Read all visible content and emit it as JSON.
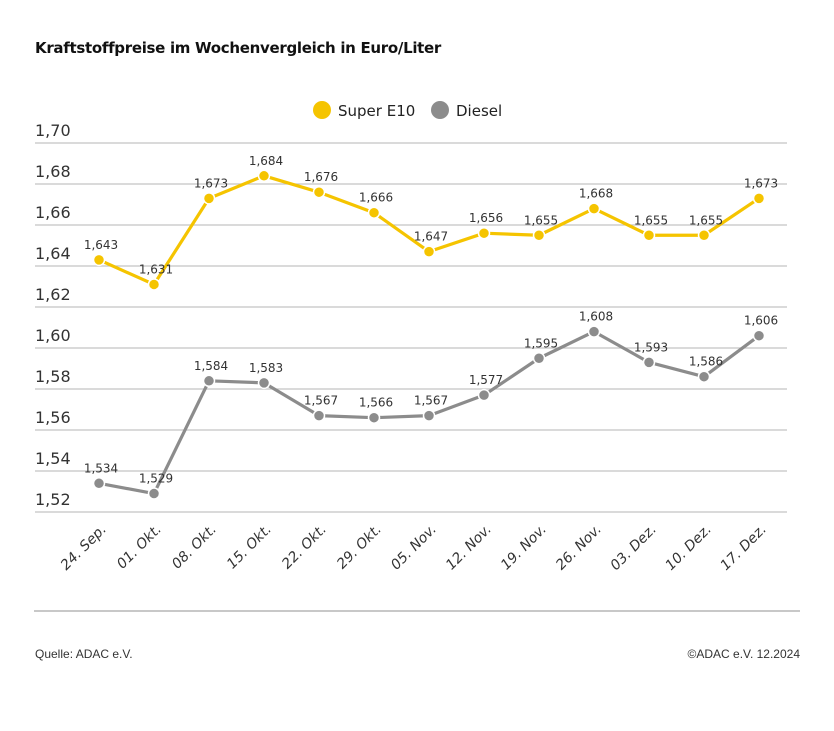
{
  "chart_data": {
    "type": "line",
    "title": "Kraftstoffpreise im Wochenvergleich in Euro/Liter",
    "categories": [
      "24. Sep.",
      "01. Okt.",
      "08. Okt.",
      "15. Okt.",
      "22. Okt.",
      "29. Okt.",
      "05. Nov.",
      "12. Nov.",
      "19. Nov.",
      "26. Nov.",
      "03. Dez.",
      "10. Dez.",
      "17. Dez."
    ],
    "series": [
      {
        "name": "Super E10",
        "color": "#f5c400",
        "values": [
          1.643,
          1.631,
          1.673,
          1.684,
          1.676,
          1.666,
          1.647,
          1.656,
          1.655,
          1.668,
          1.655,
          1.655,
          1.673
        ]
      },
      {
        "name": "Diesel",
        "color": "#8c8c8c",
        "values": [
          1.534,
          1.529,
          1.584,
          1.583,
          1.567,
          1.566,
          1.567,
          1.577,
          1.595,
          1.608,
          1.593,
          1.586,
          1.606
        ]
      }
    ],
    "yticks": [
      "1,52",
      "1,54",
      "1,56",
      "1,58",
      "1,60",
      "1,62",
      "1,64",
      "1,66",
      "1,68",
      "1,70"
    ],
    "ylim": [
      1.52,
      1.7
    ],
    "grid": true,
    "legend": "top-center",
    "decimal_separator": ","
  },
  "footer": {
    "source": "Quelle: ADAC e.V.",
    "copyright": "©ADAC e.V. 12.2024"
  }
}
